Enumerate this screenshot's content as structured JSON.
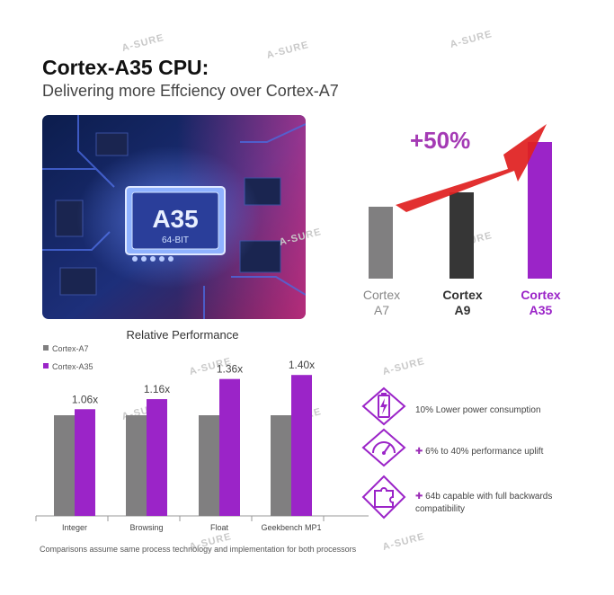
{
  "header": {
    "title": "Cortex-A35 CPU:",
    "subtitle": "Delivering more Effciency over Cortex-A7"
  },
  "chip_image": {
    "chip_text": "A35",
    "chip_subtext": "64-BIT"
  },
  "watermark": "A-SURE",
  "colors": {
    "a7": "#807f80",
    "a9": "#363636",
    "a35": "#9b24c8",
    "arrow": "#e02020",
    "badge": "#a43ab4"
  },
  "chart_data": [
    {
      "type": "bar",
      "categories": [
        "Cortex A7",
        "Cortex A9",
        "Cortex A35"
      ],
      "category_lines": [
        [
          "Cortex",
          "A7"
        ],
        [
          "Cortex",
          "A9"
        ],
        [
          "Cortex",
          "A35"
        ]
      ],
      "values": [
        1.0,
        1.2,
        1.9
      ],
      "annotation": "+50%",
      "ylim": [
        0,
        2
      ]
    },
    {
      "type": "bar",
      "title": "Relative Performance",
      "categories": [
        "Integer",
        "Browsing",
        "Float",
        "Geekbench MP1"
      ],
      "series": [
        {
          "name": "Cortex-A7",
          "values": [
            1.0,
            1.0,
            1.0,
            1.0
          ]
        },
        {
          "name": "Cortex-A35",
          "values": [
            1.06,
            1.16,
            1.36,
            1.4
          ]
        }
      ],
      "data_labels": [
        "1.06x",
        "1.16x",
        "1.36x",
        "1.40x"
      ],
      "ylim": [
        0,
        1.5
      ],
      "legend": "top-left"
    }
  ],
  "features": [
    {
      "icon": "battery-icon",
      "plus": "",
      "text": "10% Lower power consumption"
    },
    {
      "icon": "gauge-icon",
      "plus": "✚",
      "text": "6% to 40% performance uplift"
    },
    {
      "icon": "puzzle-icon",
      "plus": "✚",
      "text": "64b capable with full backwards compatibility"
    }
  ],
  "footnote": "Comparisons assume same process technology and implementation for both processors"
}
